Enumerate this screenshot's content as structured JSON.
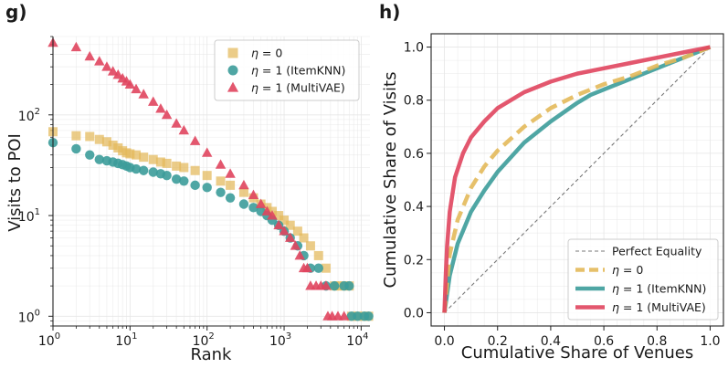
{
  "colors": {
    "eta0": "#E3B95A",
    "itemknn": "#3C9C9A",
    "multivae": "#E0455E",
    "equality": "#777777"
  },
  "chart_data": [
    {
      "panel_label": "g)",
      "type": "scatter",
      "xscale": "log",
      "yscale": "log",
      "xlabel": "Rank",
      "ylabel": "Visits to POI",
      "xlim": [
        1,
        13000
      ],
      "ylim": [
        0.8,
        600
      ],
      "xticks": [
        {
          "v": 1,
          "b": "10",
          "e": "0"
        },
        {
          "v": 10,
          "b": "10",
          "e": "1"
        },
        {
          "v": 100,
          "b": "10",
          "e": "2"
        },
        {
          "v": 1000,
          "b": "10",
          "e": "3"
        },
        {
          "v": 10000,
          "b": "10",
          "e": "4"
        }
      ],
      "yticks": [
        {
          "v": 1,
          "b": "10",
          "e": "0"
        },
        {
          "v": 10,
          "b": "10",
          "e": "1"
        },
        {
          "v": 100,
          "b": "10",
          "e": "2"
        }
      ],
      "legend_position": "top-right",
      "series": [
        {
          "name": "η = 0",
          "legend": [
            "η",
            " = 0"
          ],
          "marker": "square",
          "color": "#E3B95A",
          "points": [
            [
              1,
              68
            ],
            [
              2,
              62
            ],
            [
              3,
              61
            ],
            [
              4,
              57
            ],
            [
              5,
              54
            ],
            [
              6,
              50
            ],
            [
              7,
              47
            ],
            [
              8,
              44
            ],
            [
              9,
              42
            ],
            [
              10,
              41
            ],
            [
              12,
              40
            ],
            [
              15,
              38
            ],
            [
              20,
              36
            ],
            [
              25,
              34
            ],
            [
              30,
              33
            ],
            [
              40,
              31
            ],
            [
              50,
              30
            ],
            [
              70,
              28
            ],
            [
              100,
              25
            ],
            [
              150,
              22
            ],
            [
              200,
              20
            ],
            [
              300,
              17
            ],
            [
              400,
              15
            ],
            [
              500,
              13
            ],
            [
              600,
              12
            ],
            [
              700,
              11
            ],
            [
              850,
              10
            ],
            [
              1000,
              9
            ],
            [
              1200,
              8
            ],
            [
              1500,
              7
            ],
            [
              1800,
              6
            ],
            [
              2200,
              5
            ],
            [
              2800,
              4
            ],
            [
              3500,
              3
            ],
            [
              4500,
              2
            ],
            [
              5000,
              2
            ],
            [
              6000,
              2
            ],
            [
              7000,
              2
            ],
            [
              7500,
              1
            ],
            [
              9000,
              1
            ],
            [
              11000,
              1
            ],
            [
              12500,
              1
            ]
          ]
        },
        {
          "name": "η = 1 (ItemKNN)",
          "legend": [
            "η",
            " = 1 (ItemKNN)"
          ],
          "marker": "circle",
          "color": "#3C9C9A",
          "points": [
            [
              1,
              53
            ],
            [
              2,
              46
            ],
            [
              3,
              40
            ],
            [
              4,
              36
            ],
            [
              5,
              35
            ],
            [
              6,
              34
            ],
            [
              7,
              33
            ],
            [
              8,
              32
            ],
            [
              9,
              31
            ],
            [
              10,
              30
            ],
            [
              12,
              29
            ],
            [
              15,
              28
            ],
            [
              20,
              27
            ],
            [
              25,
              26
            ],
            [
              30,
              25
            ],
            [
              40,
              23
            ],
            [
              50,
              22
            ],
            [
              70,
              20
            ],
            [
              100,
              19
            ],
            [
              150,
              17
            ],
            [
              200,
              15
            ],
            [
              300,
              13
            ],
            [
              400,
              12
            ],
            [
              500,
              11
            ],
            [
              600,
              10
            ],
            [
              700,
              9
            ],
            [
              850,
              8
            ],
            [
              1000,
              7
            ],
            [
              1200,
              6
            ],
            [
              1500,
              5
            ],
            [
              1800,
              4
            ],
            [
              2200,
              3
            ],
            [
              2800,
              3
            ],
            [
              3500,
              2
            ],
            [
              4500,
              2
            ],
            [
              6000,
              2
            ],
            [
              7000,
              2
            ],
            [
              7500,
              1
            ],
            [
              9000,
              1
            ],
            [
              11000,
              1
            ],
            [
              12500,
              1
            ]
          ]
        },
        {
          "name": "η = 1 (MultiVAE)",
          "legend": [
            "η",
            " = 1 (MultiVAE)"
          ],
          "marker": "triangle",
          "color": "#E0455E",
          "points": [
            [
              1,
              520
            ],
            [
              2,
              470
            ],
            [
              3,
              380
            ],
            [
              4,
              340
            ],
            [
              5,
              300
            ],
            [
              6,
              270
            ],
            [
              7,
              250
            ],
            [
              8,
              230
            ],
            [
              9,
              215
            ],
            [
              10,
              200
            ],
            [
              12,
              180
            ],
            [
              15,
              160
            ],
            [
              20,
              135
            ],
            [
              25,
              115
            ],
            [
              30,
              100
            ],
            [
              40,
              82
            ],
            [
              50,
              70
            ],
            [
              70,
              55
            ],
            [
              100,
              42
            ],
            [
              150,
              32
            ],
            [
              200,
              26
            ],
            [
              300,
              20
            ],
            [
              400,
              16
            ],
            [
              500,
              13
            ],
            [
              600,
              11
            ],
            [
              700,
              10
            ],
            [
              850,
              8
            ],
            [
              1000,
              7
            ],
            [
              1200,
              6
            ],
            [
              1400,
              5
            ],
            [
              1600,
              4
            ],
            [
              1800,
              3
            ],
            [
              2000,
              3
            ],
            [
              2200,
              2
            ],
            [
              2600,
              2
            ],
            [
              3000,
              2
            ],
            [
              3500,
              2
            ],
            [
              3700,
              1
            ],
            [
              4200,
              1
            ],
            [
              5000,
              1
            ],
            [
              6000,
              1
            ]
          ]
        }
      ]
    },
    {
      "panel_label": "h)",
      "type": "line",
      "xlabel": "Cumulative Share of Venues",
      "ylabel": "Cumulative Share of Visits",
      "xlim": [
        -0.05,
        1.05
      ],
      "ylim": [
        -0.05,
        1.05
      ],
      "xticks": [
        "0.0",
        "0.2",
        "0.4",
        "0.6",
        "0.8",
        "1.0"
      ],
      "yticks": [
        "0.0",
        "0.2",
        "0.4",
        "0.6",
        "0.8",
        "1.0"
      ],
      "legend_position": "bottom-right",
      "series": [
        {
          "name": "Perfect Equality",
          "legend": [
            "",
            "Perfect Equality"
          ],
          "style": "dashed-thin",
          "color": "#777777",
          "x": [
            0,
            1
          ],
          "y": [
            0,
            1
          ]
        },
        {
          "name": "η = 0",
          "legend": [
            "η",
            " = 0"
          ],
          "style": "dashed-thick",
          "color": "#E3B95A",
          "x": [
            0,
            0.02,
            0.05,
            0.1,
            0.15,
            0.2,
            0.3,
            0.4,
            0.5,
            0.6,
            0.7,
            0.8,
            0.9,
            1.0
          ],
          "y": [
            0,
            0.22,
            0.35,
            0.47,
            0.55,
            0.61,
            0.7,
            0.77,
            0.82,
            0.86,
            0.89,
            0.93,
            0.96,
            1.0
          ]
        },
        {
          "name": "η = 1 (ItemKNN)",
          "legend": [
            "η",
            " = 1 (ItemKNN)"
          ],
          "style": "solid",
          "color": "#3C9C9A",
          "x": [
            0,
            0.02,
            0.05,
            0.1,
            0.15,
            0.2,
            0.3,
            0.4,
            0.5,
            0.55,
            0.6,
            0.7,
            0.8,
            0.9,
            1.0
          ],
          "y": [
            0,
            0.14,
            0.26,
            0.38,
            0.46,
            0.53,
            0.64,
            0.72,
            0.79,
            0.82,
            0.84,
            0.88,
            0.92,
            0.96,
            1.0
          ]
        },
        {
          "name": "η = 1 (MultiVAE)",
          "legend": [
            "η",
            " = 1 (MultiVAE)"
          ],
          "style": "solid",
          "color": "#E0455E",
          "x": [
            0,
            0.005,
            0.01,
            0.02,
            0.04,
            0.07,
            0.1,
            0.15,
            0.2,
            0.25,
            0.3,
            0.4,
            0.5,
            0.6,
            0.7,
            0.8,
            0.9,
            1.0
          ],
          "y": [
            0,
            0.14,
            0.25,
            0.38,
            0.51,
            0.6,
            0.66,
            0.72,
            0.77,
            0.8,
            0.83,
            0.87,
            0.9,
            0.92,
            0.94,
            0.96,
            0.98,
            1.0
          ]
        }
      ]
    }
  ]
}
